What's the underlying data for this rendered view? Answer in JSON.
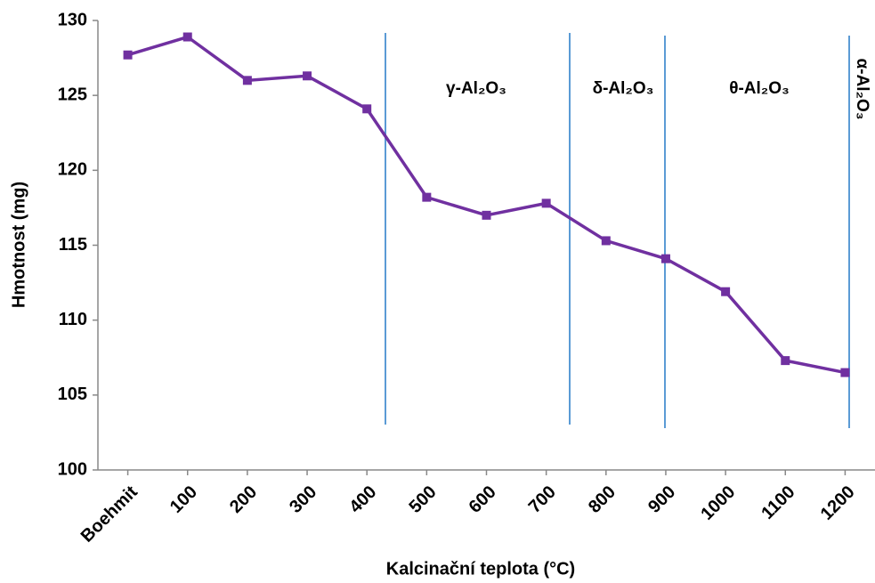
{
  "chart_data": {
    "type": "line",
    "xlabel": "Kalcinační teplota (°C)",
    "ylabel": "Hmotnost (mg)",
    "categories": [
      "Boehmit",
      "100",
      "200",
      "300",
      "400",
      "500",
      "600",
      "700",
      "800",
      "900",
      "1000",
      "1100",
      "1200"
    ],
    "series": [
      {
        "name": "Hmotnost",
        "color": "#7030a0",
        "values": [
          127.7,
          128.9,
          126.0,
          126.3,
          124.1,
          118.2,
          117.0,
          117.8,
          115.3,
          114.1,
          111.9,
          107.3,
          106.5
        ]
      }
    ],
    "ylim": [
      100,
      130
    ],
    "yticks": [
      100,
      105,
      110,
      115,
      120,
      125,
      130
    ],
    "annotations": [
      "γ-Al₂O₃",
      "δ-Al₂O₃",
      "θ-Al₂O₃",
      "α-Al₂O₃"
    ]
  }
}
